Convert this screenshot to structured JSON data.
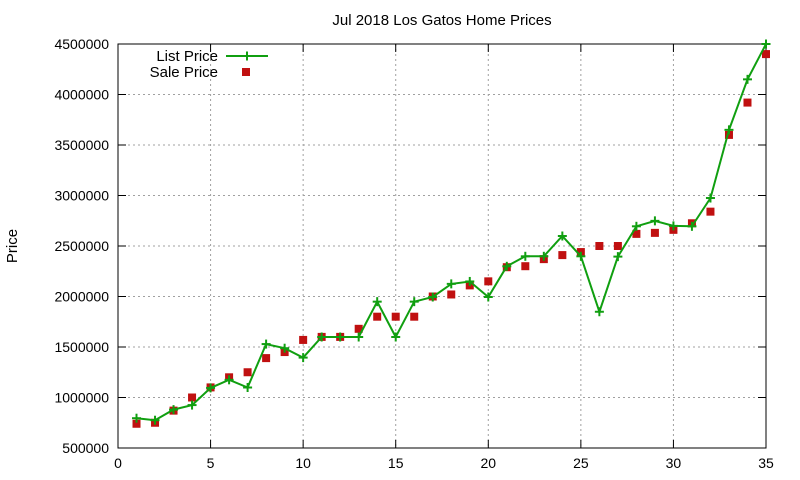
{
  "chart_data": {
    "type": "line",
    "title": "Jul 2018 Los Gatos Home Prices",
    "xlabel": "",
    "ylabel": "Price",
    "xlim": [
      0,
      35
    ],
    "ylim": [
      500000,
      4500000
    ],
    "xticks": [
      0,
      5,
      10,
      15,
      20,
      25,
      30,
      35
    ],
    "yticks": [
      500000,
      1000000,
      1500000,
      2000000,
      2500000,
      3000000,
      3500000,
      4000000,
      4500000
    ],
    "grid": true,
    "legend_position": "top-left",
    "x": [
      1,
      2,
      3,
      4,
      5,
      6,
      7,
      8,
      9,
      10,
      11,
      12,
      13,
      14,
      15,
      16,
      17,
      18,
      19,
      20,
      21,
      22,
      23,
      24,
      25,
      26,
      27,
      28,
      29,
      30,
      31,
      32,
      33,
      34,
      35
    ],
    "series": [
      {
        "name": "List Price",
        "style": "line-points",
        "color": "#109f10",
        "values": [
          795000,
          775000,
          880000,
          925000,
          1095000,
          1175000,
          1099000,
          1529000,
          1488000,
          1395000,
          1599000,
          1599000,
          1599000,
          1949000,
          1599000,
          1949000,
          1995000,
          2125000,
          2149000,
          1995000,
          2299000,
          2398000,
          2398000,
          2599000,
          2398000,
          1849000,
          2395000,
          2695000,
          2749000,
          2699000,
          2695000,
          2975000,
          3650000,
          4150000,
          4500000
        ]
      },
      {
        "name": "Sale Price",
        "style": "points",
        "color": "#c01010",
        "values": [
          740000,
          750000,
          870000,
          1000000,
          1100000,
          1200000,
          1250000,
          1390000,
          1450000,
          1570000,
          1600000,
          1600000,
          1680000,
          1800000,
          1800000,
          1800000,
          2000000,
          2020000,
          2110000,
          2150000,
          2290000,
          2300000,
          2370000,
          2410000,
          2440000,
          2500000,
          2500000,
          2620000,
          2630000,
          2660000,
          2725000,
          2840000,
          3600000,
          3920000,
          4400000
        ]
      }
    ]
  }
}
